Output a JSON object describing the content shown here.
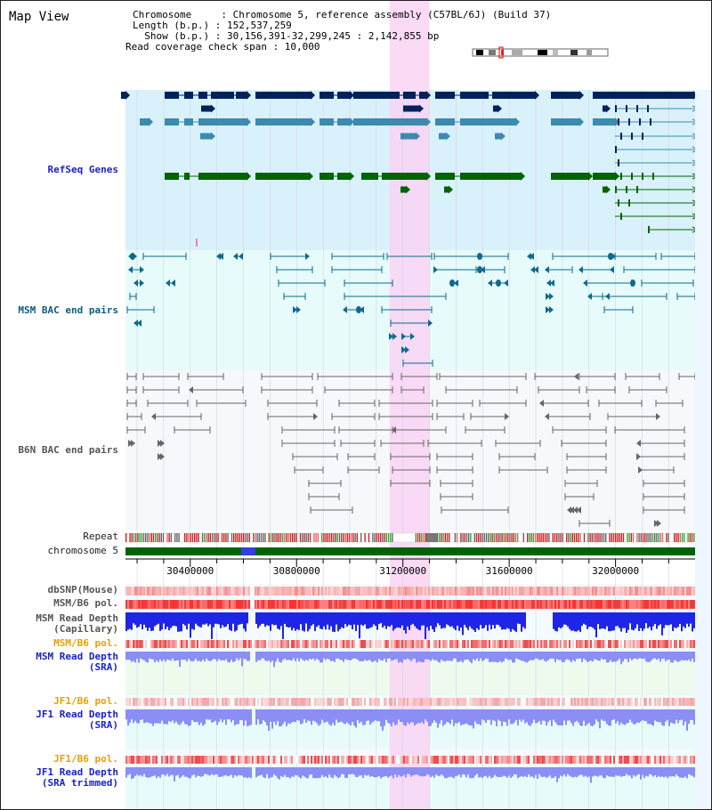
{
  "title": "Map View",
  "info": {
    "chromosome_line": "Chromosome     : Chromosome 5, reference assembly (C57BL/6J) (Build 37)",
    "length_line": "Length (b.p.) : 152,537,259",
    "show_line": "  Show (b.p.) : 30,156,391-32,299,245 : 2,142,855 bp",
    "span_line": "Read coverage check span : 10,000"
  },
  "tracks": {
    "refseq": "RefSeq Genes",
    "msm_bac": "MSM BAC end pairs",
    "b6n_bac": "B6N BAC end pairs",
    "repeat": "Repeat",
    "chromosome": "chromosome 5",
    "dbsnp": "dbSNP(Mouse)",
    "msm_b6_pol_1": "MSM/B6 pol.",
    "msm_depth_cap_1": "MSM Read Depth",
    "msm_depth_cap_2": "(Capillary)",
    "msm_b6_pol_2": "MSM/B6 pol.",
    "msm_depth_sra_1": "MSM Read Depth",
    "msm_depth_sra_2": "(SRA)",
    "jf1_pol_1": "JF1/B6 pol.",
    "jf1_depth_1": "JF1 Read Depth",
    "jf1_depth_2": "(SRA)",
    "jf1_pol_2": "JF1/B6 pol.",
    "jf1_trim_1": "JF1 Read Depth",
    "jf1_trim_2": "(SRA trimmed)"
  },
  "axis": {
    "start": 30156391,
    "end": 32299245,
    "ticks": [
      "30400000",
      "30800000",
      "31200000",
      "31600000",
      "32000000"
    ],
    "minor_step": 100000
  },
  "highlight": {
    "start": 31150000,
    "end": 31300000
  },
  "colors": {
    "refseq_bg": "#d9f1fb",
    "bac_bg": "#e7fbfb",
    "b6n_bg": "#f6f8fc",
    "highlight": "#f9d4f3",
    "gene_dark": "#00225a",
    "gene_mid": "#3b8ab0",
    "gene_green": "#006400",
    "msm_teal": "#0e6a8e",
    "b6n_gray": "#666666",
    "chrom_green": "#006400",
    "depth_blue": "#1f25e6",
    "depth_light": "#8a8ef5",
    "pol_red": "#f04a4a"
  }
}
